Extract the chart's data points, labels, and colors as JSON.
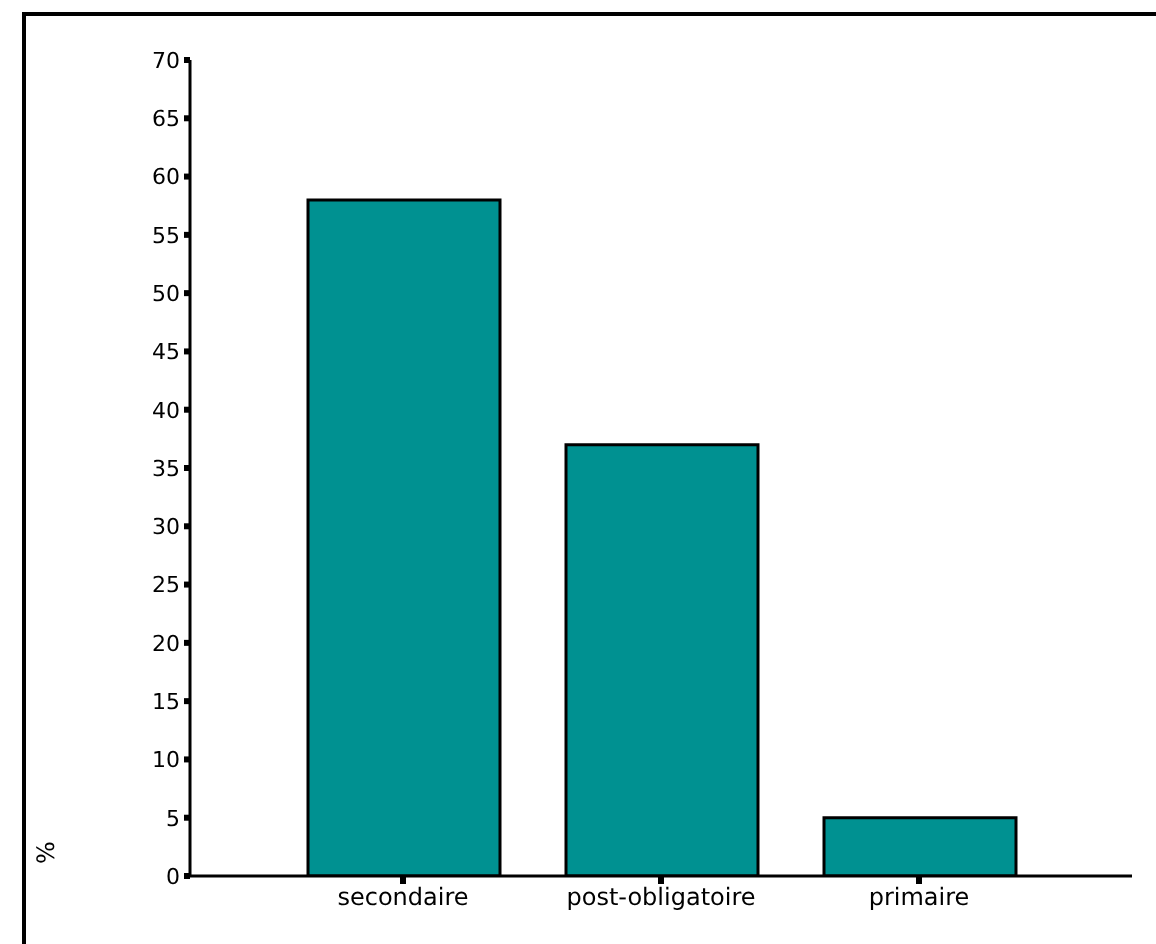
{
  "chart_data": {
    "type": "bar",
    "ylabel": "%",
    "categories": [
      "secondaire",
      "post-obligatoire",
      "primaire"
    ],
    "values": [
      58,
      37,
      5
    ],
    "color": "#009191",
    "ylim": [
      0,
      70
    ],
    "yticks": [
      0,
      5,
      10,
      15,
      20,
      25,
      30,
      35,
      40,
      45,
      50,
      55,
      60,
      65,
      70
    ],
    "grid": false
  }
}
